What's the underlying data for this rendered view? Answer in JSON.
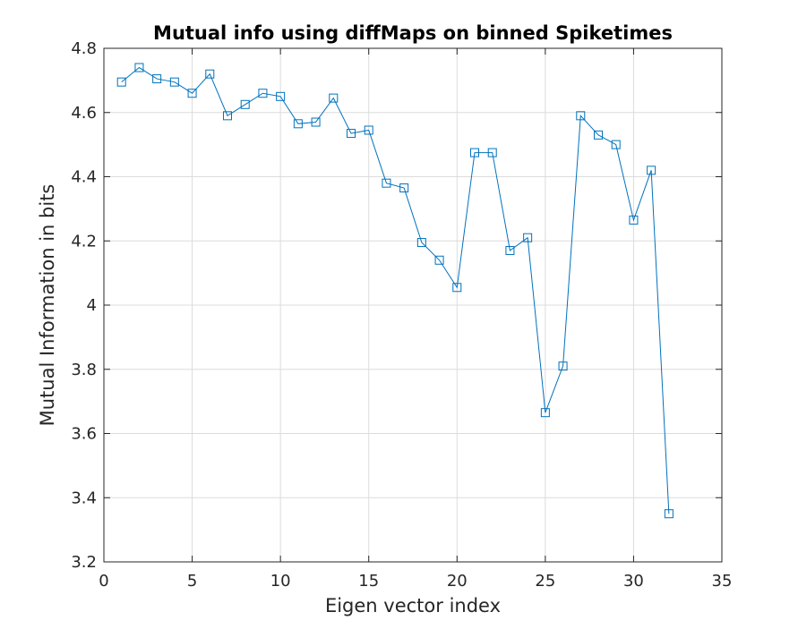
{
  "chart_data": {
    "type": "line",
    "title": "Mutual info using diffMaps on binned Spiketimes",
    "xlabel": "Eigen vector index",
    "ylabel": "Mutual Information in bits",
    "xlim": [
      0,
      35
    ],
    "ylim": [
      3.2,
      4.8
    ],
    "xticks": [
      0,
      5,
      10,
      15,
      20,
      25,
      30,
      35
    ],
    "yticks": [
      3.2,
      3.4,
      3.6,
      3.8,
      4,
      4.2,
      4.4,
      4.6,
      4.8
    ],
    "xtick_labels": [
      "0",
      "5",
      "10",
      "15",
      "20",
      "25",
      "30",
      "35"
    ],
    "ytick_labels": [
      "3.2",
      "3.4",
      "3.6",
      "3.8",
      "4",
      "4.2",
      "4.4",
      "4.6",
      "4.8"
    ],
    "grid": true,
    "marker": "square",
    "series": [
      {
        "color": "#0072BD",
        "x": [
          1,
          2,
          3,
          4,
          5,
          6,
          7,
          8,
          9,
          10,
          11,
          12,
          13,
          14,
          15,
          16,
          17,
          18,
          19,
          20,
          21,
          22,
          23,
          24,
          25,
          26,
          27,
          28,
          29,
          30,
          31,
          32
        ],
        "y": [
          4.695,
          4.74,
          4.705,
          4.695,
          4.66,
          4.72,
          4.59,
          4.625,
          4.66,
          4.65,
          4.565,
          4.57,
          4.645,
          4.535,
          4.545,
          4.38,
          4.365,
          4.195,
          4.14,
          4.055,
          4.475,
          4.475,
          4.17,
          4.21,
          3.665,
          3.81,
          4.59,
          4.53,
          4.5,
          4.265,
          4.42,
          3.35
        ]
      }
    ]
  }
}
